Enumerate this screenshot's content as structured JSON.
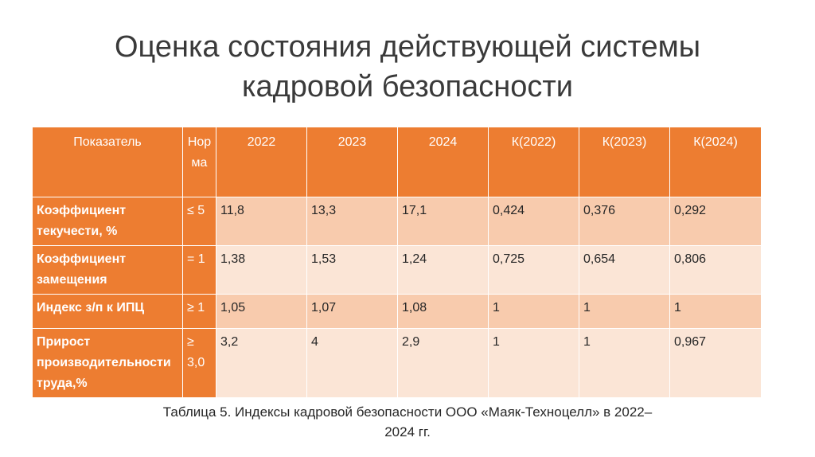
{
  "title": "Оценка состояния действующей системы кадровой безопасности",
  "table": {
    "headers": [
      "Показатель",
      "Нор ма",
      "2022",
      "2023",
      "2024",
      "К(2022)",
      "К(2023)",
      "К(2024)"
    ],
    "rows": [
      {
        "label": "Коэффициент текучести, %",
        "norm": "≤ 5",
        "v2022": "11,8",
        "v2023": "13,3",
        "v2024": "17,1",
        "k2022": "0,424",
        "k2023": "0,376",
        "k2024": "0,292"
      },
      {
        "label": "Коэффициент замещения",
        "norm": "= 1",
        "v2022": "1,38",
        "v2023": "1,53",
        "v2024": "1,24",
        "k2022": "0,725",
        "k2023": "0,654",
        "k2024": "0,806"
      },
      {
        "label": "Индекс з/п к ИПЦ",
        "norm": "≥ 1",
        "v2022": "1,05",
        "v2023": "1,07",
        "v2024": "1,08",
        "k2022": "1",
        "k2023": "1",
        "k2024": "1"
      },
      {
        "label": "Прирост производительности труда,%",
        "norm": "≥ 3,0",
        "v2022": "3,2",
        "v2023": "4",
        "v2024": "2,9",
        "k2022": "1",
        "k2023": "1",
        "k2024": "0,967"
      }
    ]
  },
  "caption": "Таблица 5. Индексы кадровой безопасности ООО «Маяк-Техноцелл» в 2022–2024 гг.",
  "colors": {
    "header": "#ed7d31",
    "row_dark": "#f8cbad",
    "row_light": "#fbe5d6"
  }
}
